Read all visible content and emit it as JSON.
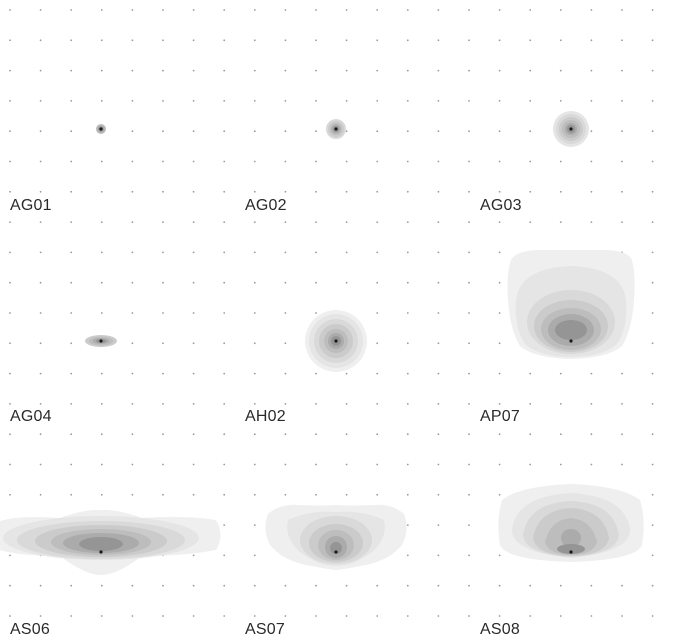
{
  "colors": {
    "background": "#ffffff",
    "grid_dot": "#9a9a9a",
    "contour_shades": [
      "#efefef",
      "#e5e5e5",
      "#d9d9d9",
      "#cbcbcb",
      "#bdbdbd",
      "#ababab",
      "#959595"
    ],
    "center_point": "#1a1a1a",
    "label": "#2a2a2a"
  },
  "cells": [
    {
      "label": "AG01",
      "shape": "dot-small"
    },
    {
      "label": "AG02",
      "shape": "dot-medium"
    },
    {
      "label": "AG03",
      "shape": "dot-large"
    },
    {
      "label": "AG04",
      "shape": "ellipse-flat"
    },
    {
      "label": "AH02",
      "shape": "circle"
    },
    {
      "label": "AP07",
      "shape": "tall-rounded"
    },
    {
      "label": "AS06",
      "shape": "wide-spread"
    },
    {
      "label": "AS07",
      "shape": "lobed-wide"
    },
    {
      "label": "AS08",
      "shape": "dome"
    }
  ]
}
